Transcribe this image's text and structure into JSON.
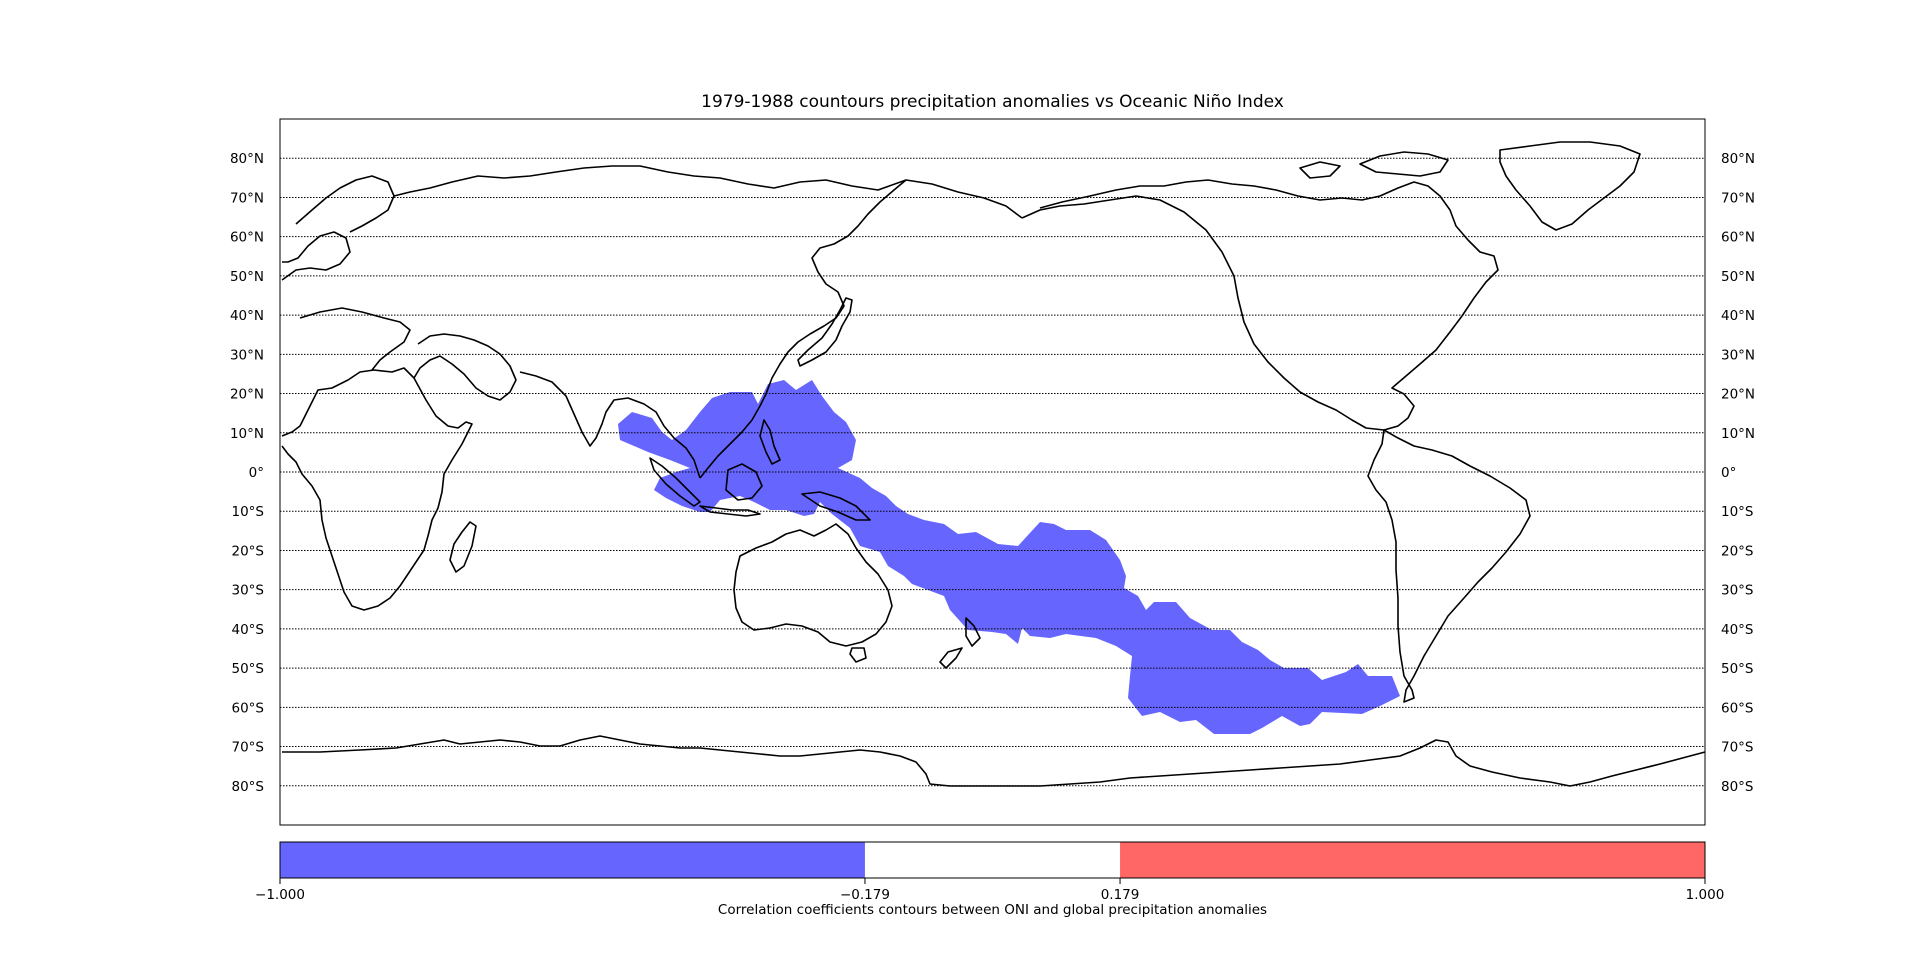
{
  "figure": {
    "title": "1979-1988 countours precipitation anomalies vs Oceanic Niño Index"
  },
  "map": {
    "projection": "cylindrical, centered on 180°",
    "lon_range": [
      0,
      360
    ],
    "lat_range": [
      -90,
      90
    ],
    "parallels": [
      80,
      70,
      60,
      50,
      40,
      30,
      20,
      10,
      0,
      -10,
      -20,
      -30,
      -40,
      -50,
      -60,
      -70,
      -80
    ],
    "lat_labels": [
      "80°N",
      "70°N",
      "60°N",
      "50°N",
      "40°N",
      "30°N",
      "20°N",
      "10°N",
      "0°",
      "10°S",
      "20°S",
      "30°S",
      "40°S",
      "50°S",
      "60°S",
      "70°S",
      "80°S"
    ],
    "gridline_style": "dotted",
    "coastline_color": "#000000",
    "anomaly_region": {
      "category": "negative correlation (-1.000 to -0.179)",
      "color": "#6666ff",
      "description_area": "Maritime continent through South Pacific Convergence Zone"
    }
  },
  "colorbar": {
    "ticks": [
      "−1.000",
      "−0.179",
      "0.179",
      "1.000"
    ],
    "segments": [
      {
        "from": -1.0,
        "to": -0.179,
        "color": "#6666ff"
      },
      {
        "from": -0.179,
        "to": 0.179,
        "color": "#ffffff"
      },
      {
        "from": 0.179,
        "to": 1.0,
        "color": "#ff6666"
      }
    ],
    "label": "Correlation coefficients contours between ONI and global precipitation anomalies"
  }
}
